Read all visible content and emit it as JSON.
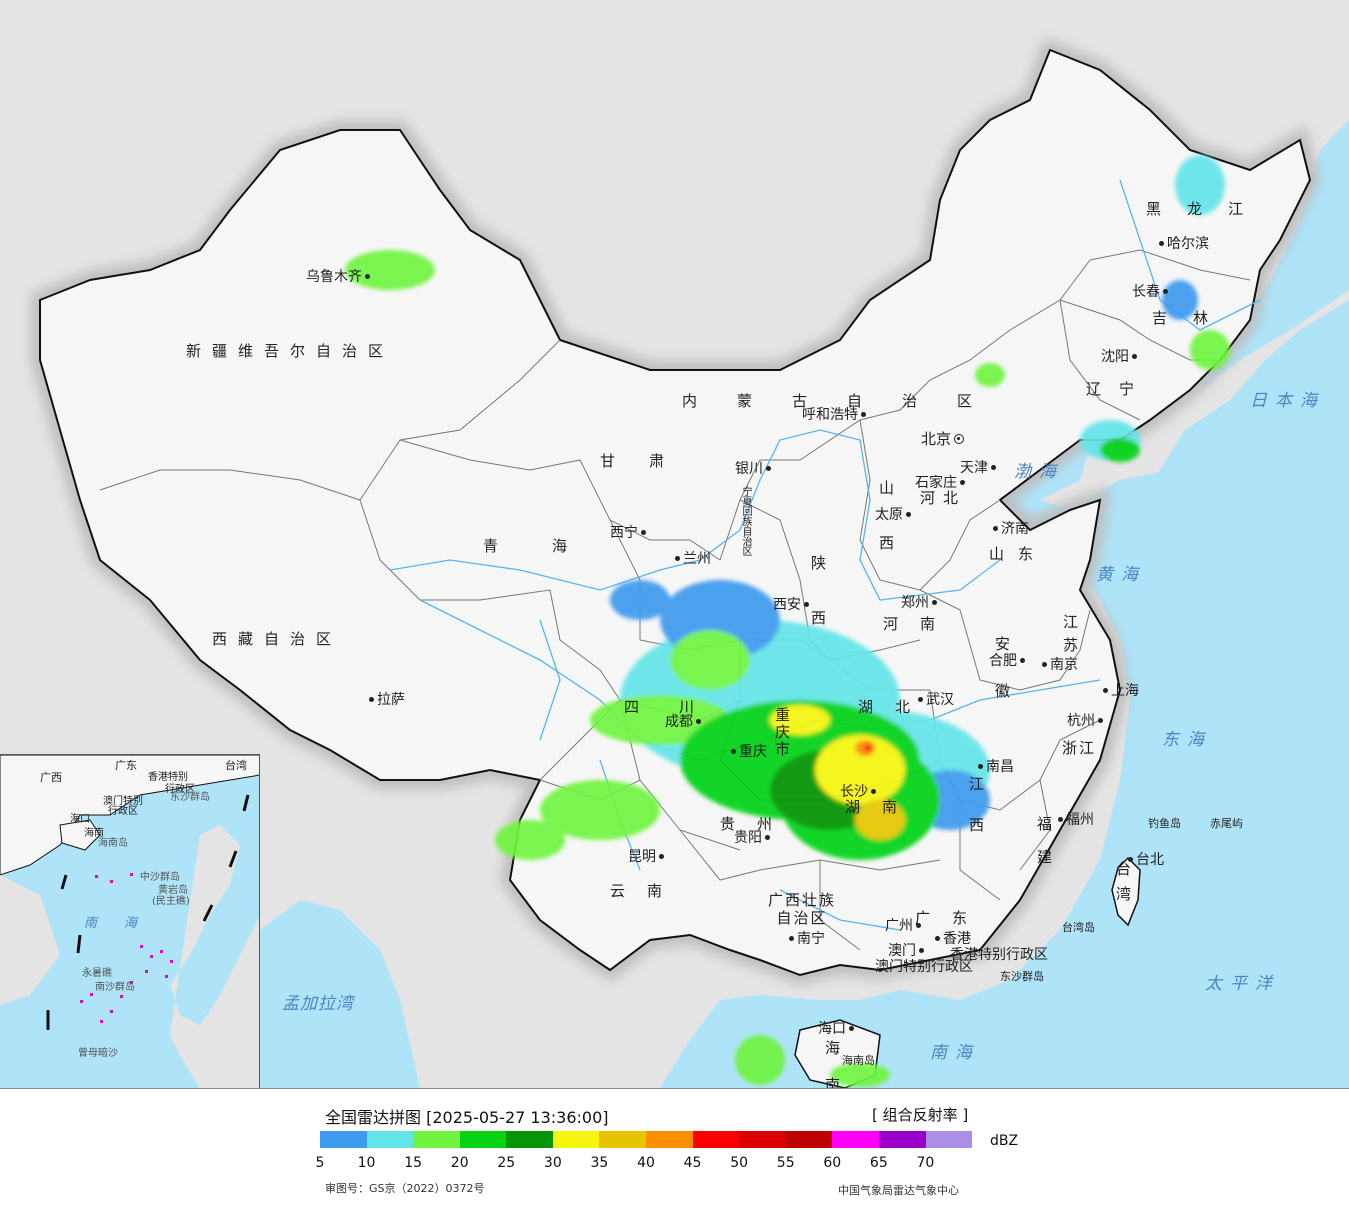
{
  "map": {
    "colors": {
      "sea": "#aee3f8",
      "foreign_land": "#e4e4e4",
      "china_land": "#f7f7f7",
      "border": "#111111",
      "province_line": "#777777",
      "river": "#66b8ea",
      "halo": "#c8c8c8"
    },
    "regions": [
      "新疆维吾尔自治区",
      "西藏自治区",
      "青海",
      "甘肃",
      "内蒙古自治区",
      "黑龙江",
      "吉林",
      "辽宁",
      "河北",
      "山西",
      "陕西",
      "河南",
      "山东",
      "江苏",
      "安徽",
      "浙江",
      "湖北",
      "四川",
      "重庆市",
      "贵州",
      "湖南",
      "江西",
      "福建",
      "云南",
      "广西壮族自治区",
      "广东",
      "海南",
      "台湾",
      "宁夏回族自治区"
    ],
    "cities": [
      "乌鲁木齐",
      "拉萨",
      "西宁",
      "兰州",
      "银川",
      "呼和浩特",
      "北京",
      "天津",
      "石家庄",
      "太原",
      "济南",
      "郑州",
      "西安",
      "合肥",
      "南京",
      "上海",
      "杭州",
      "武汉",
      "长沙",
      "南昌",
      "福州",
      "台北",
      "广州",
      "香港",
      "澳门",
      "南宁",
      "海口",
      "贵阳",
      "昆明",
      "成都",
      "重庆",
      "沈阳",
      "长春",
      "哈尔滨"
    ],
    "special_regions": [
      "香港特别行政区",
      "澳门特别行政区"
    ],
    "seas": [
      "日本海",
      "渤海",
      "黄海",
      "东海",
      "南海",
      "太平洋",
      "孟加拉湾"
    ],
    "islands": [
      "钓鱼岛",
      "赤尾屿",
      "台湾岛",
      "东沙群岛",
      "海南岛"
    ]
  },
  "inset": {
    "labels": [
      "广东",
      "台湾",
      "广西",
      "香港特别",
      "行政区",
      "澳门特别",
      "行政区",
      "东沙群岛",
      "海口",
      "海南",
      "海南岛",
      "中沙群岛",
      "黄岩岛",
      "(民主礁)",
      "南",
      "海",
      "永暑礁",
      "南沙群岛",
      "曾母暗沙"
    ]
  },
  "legend": {
    "title": "全国雷达拼图 [2025-05-27 13:36:00]",
    "product": "[ 组合反射率 ]",
    "unit": "dBZ",
    "ticks": [
      "5",
      "10",
      "15",
      "20",
      "25",
      "30",
      "35",
      "40",
      "45",
      "50",
      "55",
      "60",
      "65",
      "70"
    ],
    "colors": [
      "#3d9aee",
      "#63e5e8",
      "#6ff43f",
      "#05d313",
      "#049406",
      "#f5f510",
      "#e6c500",
      "#fc8f00",
      "#fb0000",
      "#dc0000",
      "#bd0000",
      "#fc00fc",
      "#9b00c8",
      "#aa8ee8"
    ],
    "review_number": "审图号：GS京（2022）0372号",
    "source": "中国气象局雷达气象中心"
  }
}
